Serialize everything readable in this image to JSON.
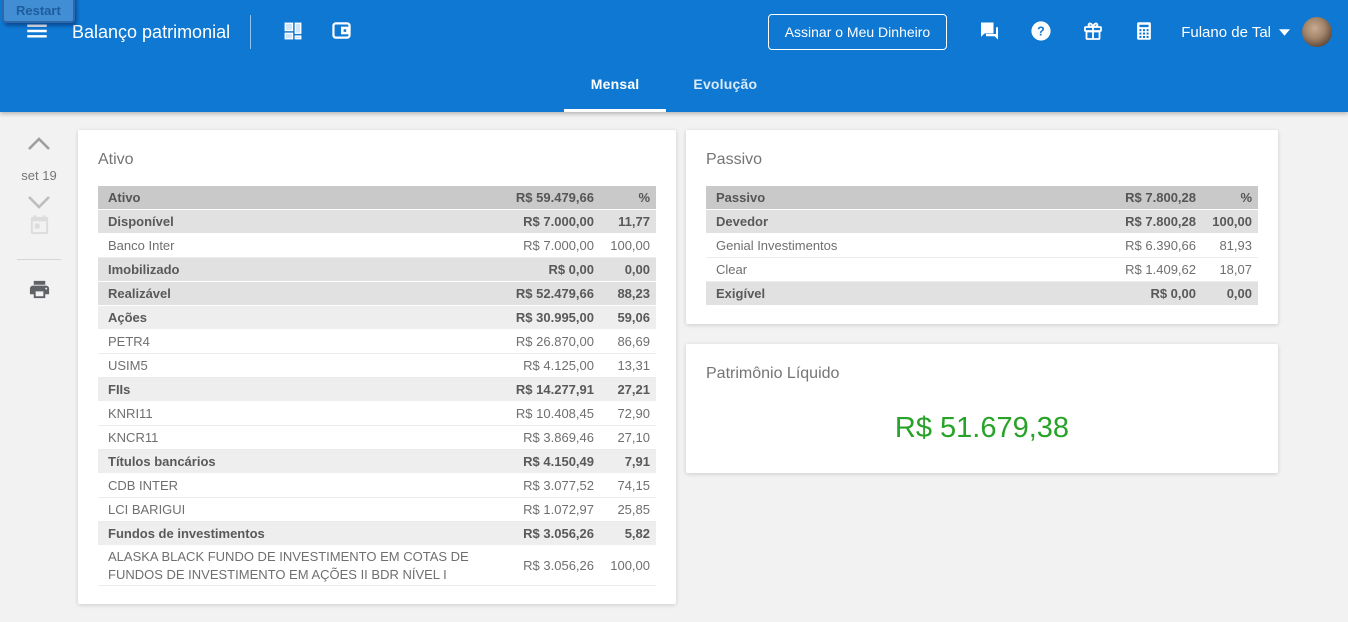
{
  "restart_label": "Restart",
  "colors": {
    "accent_blue": "#0e78d2",
    "positive_green": "#28a228"
  },
  "app_bar": {
    "title": "Balanço patrimonial",
    "subscribe_button": "Assinar o Meu Dinheiro",
    "user_name": "Fulano de Tal",
    "icons": [
      "menu-icon",
      "dashboard-icon",
      "wallet-icon",
      "chat-icon",
      "help-icon",
      "gift-icon",
      "calculator-icon",
      "caret-down-icon"
    ]
  },
  "tabs": [
    {
      "label": "Mensal",
      "active": true
    },
    {
      "label": "Evolução",
      "active": false
    }
  ],
  "sidebar": {
    "period": "set 19",
    "icons": [
      "chevron-up-icon",
      "chevron-down-icon",
      "calendar-icon",
      "printer-icon"
    ]
  },
  "ativo": {
    "title": "Ativo",
    "rows": [
      {
        "type": "header",
        "name": "Ativo",
        "value": "R$ 59.479,66",
        "pct": "%"
      },
      {
        "type": "group1",
        "name": "Disponível",
        "value": "R$ 7.000,00",
        "pct": "11,77"
      },
      {
        "type": "item",
        "name": "Banco Inter",
        "value": "R$ 7.000,00",
        "pct": "100,00"
      },
      {
        "type": "group1",
        "name": "Imobilizado",
        "value": "R$ 0,00",
        "pct": "0,00"
      },
      {
        "type": "group1",
        "name": "Realizável",
        "value": "R$ 52.479,66",
        "pct": "88,23"
      },
      {
        "type": "group2",
        "name": "Ações",
        "value": "R$ 30.995,00",
        "pct": "59,06"
      },
      {
        "type": "item",
        "name": "PETR4",
        "value": "R$ 26.870,00",
        "pct": "86,69"
      },
      {
        "type": "item",
        "name": "USIM5",
        "value": "R$ 4.125,00",
        "pct": "13,31"
      },
      {
        "type": "group2",
        "name": "FIIs",
        "value": "R$ 14.277,91",
        "pct": "27,21"
      },
      {
        "type": "item",
        "name": "KNRI11",
        "value": "R$ 10.408,45",
        "pct": "72,90"
      },
      {
        "type": "item",
        "name": "KNCR11",
        "value": "R$ 3.869,46",
        "pct": "27,10"
      },
      {
        "type": "group2",
        "name": "Títulos bancários",
        "value": "R$ 4.150,49",
        "pct": "7,91"
      },
      {
        "type": "item",
        "name": "CDB INTER",
        "value": "R$ 3.077,52",
        "pct": "74,15"
      },
      {
        "type": "item",
        "name": "LCI BARIGUI",
        "value": "R$ 1.072,97",
        "pct": "25,85"
      },
      {
        "type": "group2",
        "name": "Fundos de investimentos",
        "value": "R$ 3.056,26",
        "pct": "5,82"
      },
      {
        "type": "item",
        "name": "ALASKA BLACK FUNDO DE INVESTIMENTO EM COTAS DE FUNDOS DE INVESTIMENTO EM AÇÕES II BDR NÍVEL I",
        "value": "R$ 3.056,26",
        "pct": "100,00"
      }
    ]
  },
  "passivo": {
    "title": "Passivo",
    "rows": [
      {
        "type": "header",
        "name": "Passivo",
        "value": "R$ 7.800,28",
        "pct": "%"
      },
      {
        "type": "group1",
        "name": "Devedor",
        "value": "R$ 7.800,28",
        "pct": "100,00"
      },
      {
        "type": "item",
        "name": "Genial Investimentos",
        "value": "R$ 6.390,66",
        "pct": "81,93"
      },
      {
        "type": "item",
        "name": "Clear",
        "value": "R$ 1.409,62",
        "pct": "18,07"
      },
      {
        "type": "group1",
        "name": "Exigível",
        "value": "R$ 0,00",
        "pct": "0,00"
      }
    ]
  },
  "patrimonio": {
    "title": "Patrimônio Líquido",
    "value": "R$ 51.679,38"
  }
}
